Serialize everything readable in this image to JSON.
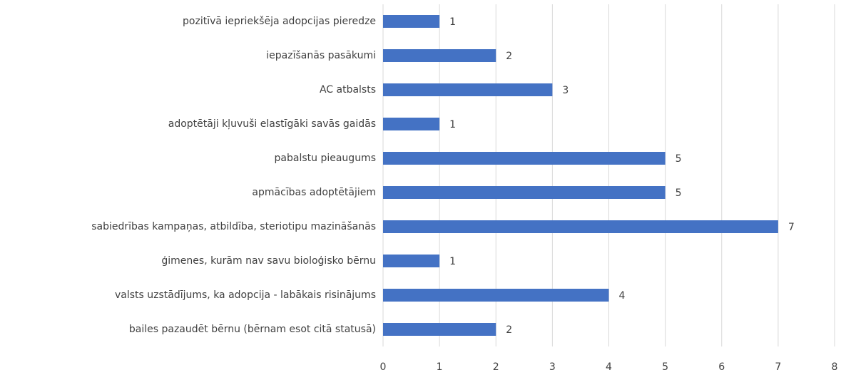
{
  "chart_data": {
    "type": "hbar",
    "categories": [
      "pozitīvā iepriekšēja adopcijas pieredze",
      "iepazīšanās pasākumi",
      "AC atbalsts",
      "adoptētāji kļuvuši elastīgāki savās gaidās",
      "pabalstu pieaugums",
      "apmācības adoptētājiem",
      "sabiedrības kampaņas, atbildība, steriotipu mazināšanās",
      "ģimenes, kurām nav savu bioloģisko bērnu",
      "valsts uzstādījums, ka adopcija - labākais risinājums",
      "bailes pazaudēt bērnu (bērnam esot citā statusā)"
    ],
    "values": [
      1,
      2,
      3,
      1,
      5,
      5,
      7,
      1,
      4,
      2
    ],
    "color": "#4472c4",
    "xlim": [
      0,
      8
    ],
    "xticks": [
      0,
      1,
      2,
      3,
      4,
      5,
      6,
      7,
      8
    ],
    "grid": true
  }
}
